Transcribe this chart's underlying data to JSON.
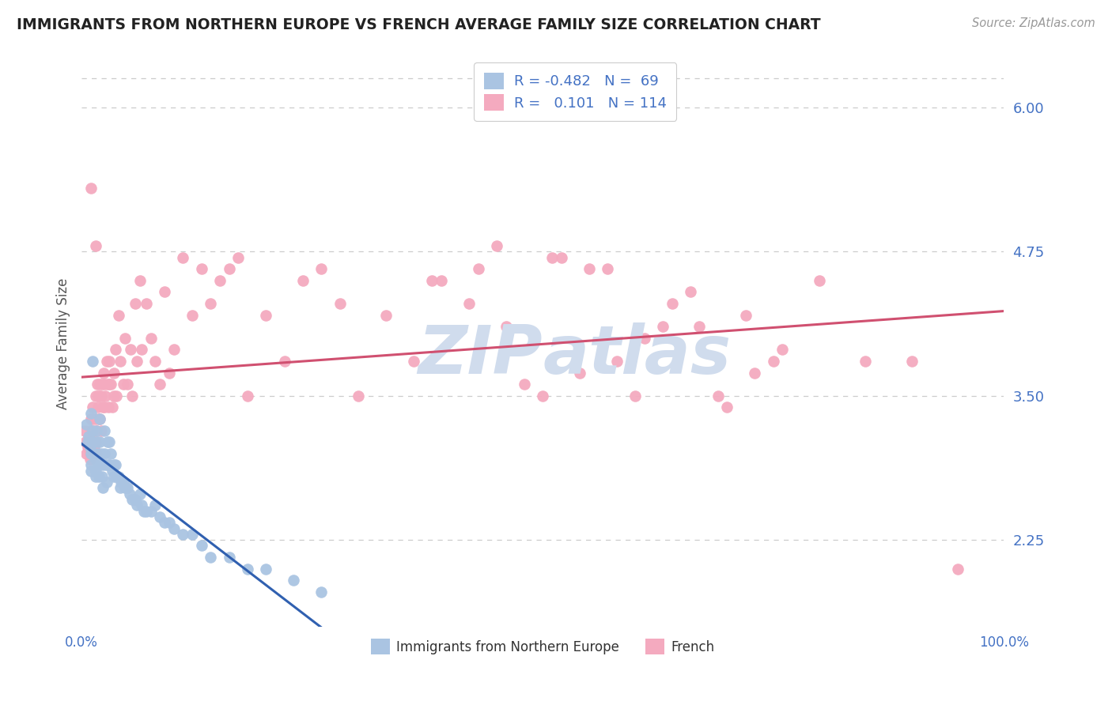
{
  "title": "IMMIGRANTS FROM NORTHERN EUROPE VS FRENCH AVERAGE FAMILY SIZE CORRELATION CHART",
  "source_text": "Source: ZipAtlas.com",
  "ylabel": "Average Family Size",
  "xmin": 0.0,
  "xmax": 1.0,
  "ymin": 1.5,
  "ymax": 6.4,
  "yticks": [
    2.25,
    3.5,
    4.75,
    6.0
  ],
  "background_color": "#ffffff",
  "grid_color": "#cccccc",
  "title_color": "#222222",
  "axis_label_color": "#555555",
  "tick_color": "#4472c4",
  "legend_R1": "-0.482",
  "legend_N1": "69",
  "legend_R2": "0.101",
  "legend_N2": "114",
  "scatter1_color": "#aac4e2",
  "scatter2_color": "#f4aabf",
  "line1_color": "#3060b0",
  "line2_color": "#d05070",
  "watermark_color": "#d0dced",
  "blue_scatter_x": [
    0.005,
    0.007,
    0.008,
    0.009,
    0.01,
    0.01,
    0.01,
    0.01,
    0.012,
    0.012,
    0.013,
    0.014,
    0.015,
    0.015,
    0.015,
    0.016,
    0.017,
    0.018,
    0.018,
    0.019,
    0.02,
    0.02,
    0.021,
    0.022,
    0.022,
    0.023,
    0.025,
    0.025,
    0.026,
    0.027,
    0.028,
    0.028,
    0.03,
    0.03,
    0.032,
    0.033,
    0.035,
    0.035,
    0.037,
    0.038,
    0.04,
    0.042,
    0.043,
    0.045,
    0.047,
    0.05,
    0.052,
    0.055,
    0.058,
    0.06,
    0.063,
    0.065,
    0.068,
    0.07,
    0.075,
    0.08,
    0.085,
    0.09,
    0.095,
    0.1,
    0.11,
    0.12,
    0.13,
    0.14,
    0.16,
    0.18,
    0.2,
    0.23,
    0.26
  ],
  "blue_scatter_y": [
    3.25,
    3.1,
    3.15,
    3.05,
    3.0,
    2.9,
    2.85,
    3.35,
    3.8,
    3.2,
    3.1,
    3.0,
    2.95,
    2.85,
    2.8,
    3.2,
    3.1,
    3.0,
    2.9,
    2.8,
    3.3,
    3.1,
    3.0,
    2.9,
    2.8,
    2.7,
    3.2,
    3.0,
    2.9,
    2.75,
    3.1,
    2.9,
    3.1,
    2.9,
    3.0,
    2.85,
    2.9,
    2.8,
    2.9,
    2.8,
    2.8,
    2.7,
    2.75,
    2.75,
    2.7,
    2.7,
    2.65,
    2.6,
    2.6,
    2.55,
    2.65,
    2.55,
    2.5,
    2.5,
    2.5,
    2.55,
    2.45,
    2.4,
    2.4,
    2.35,
    2.3,
    2.3,
    2.2,
    2.1,
    2.1,
    2.0,
    2.0,
    1.9,
    1.8
  ],
  "pink_scatter_x": [
    0.003,
    0.004,
    0.005,
    0.006,
    0.007,
    0.008,
    0.009,
    0.009,
    0.01,
    0.01,
    0.01,
    0.01,
    0.011,
    0.012,
    0.012,
    0.013,
    0.013,
    0.014,
    0.015,
    0.015,
    0.015,
    0.015,
    0.016,
    0.016,
    0.017,
    0.018,
    0.018,
    0.019,
    0.02,
    0.02,
    0.02,
    0.021,
    0.021,
    0.022,
    0.023,
    0.024,
    0.025,
    0.025,
    0.026,
    0.027,
    0.028,
    0.029,
    0.03,
    0.03,
    0.032,
    0.033,
    0.035,
    0.035,
    0.037,
    0.038,
    0.04,
    0.042,
    0.045,
    0.047,
    0.05,
    0.053,
    0.055,
    0.058,
    0.06,
    0.063,
    0.065,
    0.07,
    0.075,
    0.08,
    0.085,
    0.09,
    0.095,
    0.1,
    0.11,
    0.12,
    0.13,
    0.14,
    0.15,
    0.16,
    0.17,
    0.18,
    0.2,
    0.22,
    0.24,
    0.26,
    0.28,
    0.3,
    0.33,
    0.36,
    0.39,
    0.42,
    0.45,
    0.48,
    0.51,
    0.54,
    0.57,
    0.6,
    0.63,
    0.66,
    0.69,
    0.72,
    0.75,
    0.8,
    0.85,
    0.9,
    0.5,
    0.38,
    0.43,
    0.46,
    0.52,
    0.55,
    0.58,
    0.61,
    0.64,
    0.67,
    0.7,
    0.73,
    0.76,
    0.95
  ],
  "pink_scatter_y": [
    3.2,
    3.1,
    3.0,
    3.1,
    3.05,
    3.15,
    3.0,
    2.95,
    5.3,
    3.3,
    3.2,
    3.1,
    3.0,
    3.4,
    3.3,
    3.2,
    3.1,
    3.05,
    4.8,
    3.5,
    3.3,
    3.1,
    3.2,
    3.0,
    3.6,
    3.5,
    3.4,
    3.3,
    3.6,
    3.5,
    3.3,
    3.5,
    3.2,
    3.6,
    3.4,
    3.7,
    3.6,
    3.4,
    3.5,
    3.8,
    3.6,
    3.4,
    3.8,
    3.6,
    3.6,
    3.4,
    3.7,
    3.5,
    3.9,
    3.5,
    4.2,
    3.8,
    3.6,
    4.0,
    3.6,
    3.9,
    3.5,
    4.3,
    3.8,
    4.5,
    3.9,
    4.3,
    4.0,
    3.8,
    3.6,
    4.4,
    3.7,
    3.9,
    4.7,
    4.2,
    4.6,
    4.3,
    4.5,
    4.6,
    4.7,
    3.5,
    4.2,
    3.8,
    4.5,
    4.6,
    4.3,
    3.5,
    4.2,
    3.8,
    4.5,
    4.3,
    4.8,
    3.6,
    4.7,
    3.7,
    4.6,
    3.5,
    4.1,
    4.4,
    3.5,
    4.2,
    3.8,
    4.5,
    3.8,
    3.8,
    3.5,
    4.5,
    4.6,
    4.1,
    4.7,
    4.6,
    3.8,
    4.0,
    4.3,
    4.1,
    3.4,
    3.7,
    3.9,
    2.0
  ]
}
